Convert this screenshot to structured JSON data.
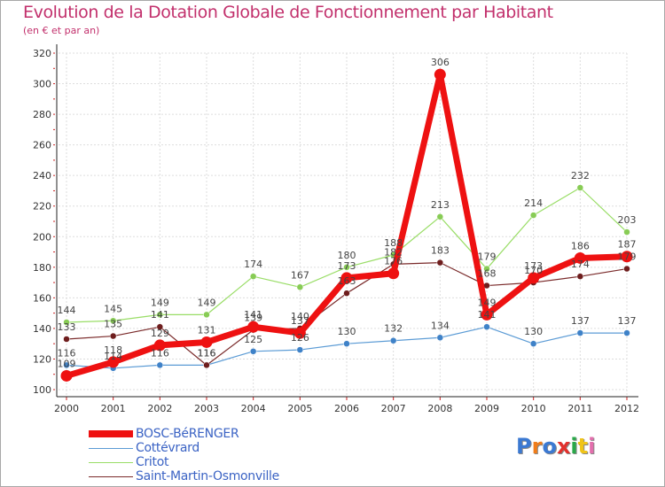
{
  "page": {
    "title": "Evolution de la Dotation Globale de Fonctionnement par Habitant",
    "subtitle": "(en € et par an)",
    "logo": {
      "text": "Proxiti",
      "letters": [
        "P",
        "r",
        "o",
        "x",
        "i",
        "t",
        "i"
      ],
      "colors": [
        "#3b79d2",
        "#f07d1a",
        "#3b79d2",
        "#e2312d",
        "#2aa84a",
        "#f0c419",
        "#e36fad"
      ]
    }
  },
  "chart_data": {
    "type": "line",
    "title": "Evolution de la Dotation Globale de Fonctionnement par Habitant",
    "subtitle": "(en € et par an)",
    "xlabel": "",
    "ylabel": "",
    "x": [
      "2000",
      "2001",
      "2002",
      "2003",
      "2004",
      "2005",
      "2006",
      "2007",
      "2008",
      "2009",
      "2010",
      "2011",
      "2012"
    ],
    "ylim": [
      100,
      320
    ],
    "yticks": [
      100,
      120,
      140,
      160,
      180,
      200,
      220,
      240,
      260,
      280,
      300,
      320
    ],
    "grid": true,
    "legend_position": "bottom-left",
    "series": [
      {
        "name": "Cottévrard",
        "color": "#5b9bd5",
        "marker": "#3f82c8",
        "values": [
          116,
          114,
          116,
          116,
          125,
          126,
          130,
          132,
          134,
          141,
          130,
          137,
          137
        ],
        "labels": [
          "116",
          "114",
          "116",
          "116",
          "125",
          "126",
          "130",
          "132",
          "134",
          "141",
          "130",
          "137",
          "137"
        ]
      },
      {
        "name": "Critot",
        "color": "#99dd66",
        "marker": "#88cc55",
        "values": [
          144,
          145,
          149,
          149,
          174,
          167,
          180,
          188,
          213,
          179,
          214,
          232,
          203
        ],
        "labels": [
          "144",
          "145",
          "149",
          "149",
          "174",
          "167",
          "180",
          "188",
          "213",
          "179",
          "214",
          "232",
          "203"
        ]
      },
      {
        "name": "Saint-Martin-Osmonville",
        "color": "#7a2a2a",
        "marker": "#6e1d1d",
        "values": [
          133,
          135,
          141,
          116,
          139,
          140,
          163,
          182,
          183,
          168,
          170,
          174,
          179
        ],
        "labels": [
          "133",
          "135",
          "141",
          "116",
          "139",
          "140",
          "163",
          "182",
          "183",
          "168",
          "170",
          "174",
          "179"
        ]
      },
      {
        "name": "BOSC-BéRENGER",
        "color": "#ee1111",
        "marker": "#ee1111",
        "values": [
          109,
          118,
          129,
          131,
          141,
          137,
          173,
          176,
          306,
          149,
          173,
          186,
          187
        ],
        "labels": [
          "109",
          "118",
          "129",
          "131",
          "141",
          "137",
          "173",
          "176",
          "306",
          "149",
          "173",
          "186",
          "187"
        ]
      }
    ],
    "legend": [
      "BOSC-BéRENGER",
      "Cottévrard",
      "Critot",
      "Saint-Martin-Osmonville"
    ]
  }
}
